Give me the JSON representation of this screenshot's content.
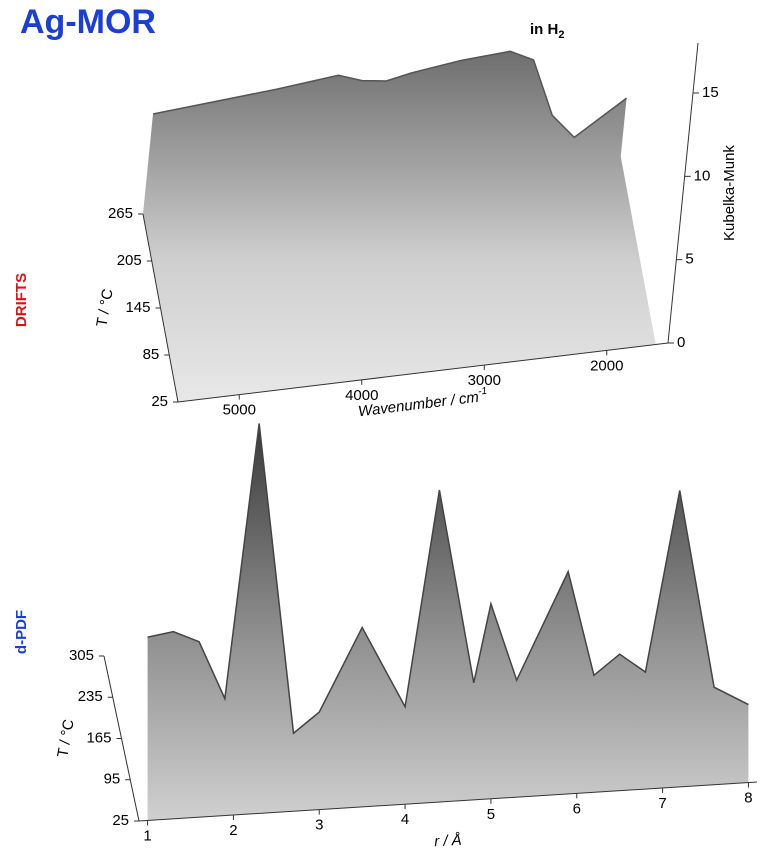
{
  "title": "Ag-MOR",
  "condition": {
    "text": "in H",
    "subscript": "2"
  },
  "panel_labels": [
    "DRIFTS",
    "d-PDF"
  ],
  "chart_data": [
    {
      "type": "surface",
      "x_label": "Wavenumber / cm",
      "x_label_superscript": "-1",
      "y_label": "T / °C",
      "z_label": "Kubelka-Munk",
      "x": [
        5500,
        5000,
        4500,
        4000,
        3800,
        3600,
        3400,
        3000,
        2600,
        2400,
        2200,
        2000,
        1800,
        1600
      ],
      "values": [
        6,
        6.3,
        6.6,
        7,
        6.5,
        6.3,
        6.6,
        7,
        7.2,
        6.5,
        3,
        1.5,
        2.5,
        3.5
      ],
      "xlim": [
        5500,
        1500
      ],
      "xticks": [
        5000,
        4000,
        3000,
        2000
      ],
      "ylim": [
        25,
        265
      ],
      "yticks": [
        25,
        85,
        145,
        205,
        265
      ],
      "zlim": [
        0,
        18
      ],
      "zticks": [
        0,
        5,
        10,
        15
      ],
      "color": "#555555"
    },
    {
      "type": "surface",
      "x_label": "r / Å",
      "y_label": "T / °C",
      "x": [
        1,
        1.3,
        1.6,
        1.9,
        2.3,
        2.7,
        3.0,
        3.5,
        4.0,
        4.4,
        4.8,
        5.0,
        5.3,
        5.9,
        6.2,
        6.5,
        6.8,
        7.2,
        7.6,
        8
      ],
      "values": [
        0.47,
        0.48,
        0.45,
        0.3,
        1.0,
        0.2,
        0.25,
        0.46,
        0.25,
        0.8,
        0.3,
        0.5,
        0.3,
        0.57,
        0.3,
        0.35,
        0.3,
        0.76,
        0.25,
        0.2
      ],
      "xlim": [
        0.9,
        8.1
      ],
      "xticks": [
        1,
        2,
        3,
        4,
        5,
        6,
        7,
        8
      ],
      "ylim": [
        25,
        305
      ],
      "yticks": [
        25,
        95,
        165,
        235,
        305
      ],
      "zlim": [
        0,
        1
      ],
      "color": "#444444"
    }
  ]
}
